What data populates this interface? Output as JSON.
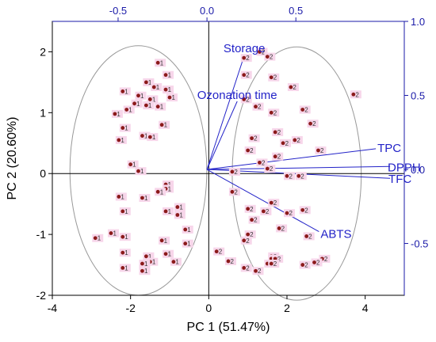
{
  "chart_data": {
    "type": "scatter",
    "subtype": "biplot",
    "xlabel": "PC 1 (51.47%)",
    "ylabel": "PC 2 (20.60%)",
    "xlim": [
      -4,
      5
    ],
    "ylim": [
      -2,
      2.5
    ],
    "xticks": [
      "-4",
      "-2",
      "0",
      "2",
      "4"
    ],
    "yticks": [
      "-2",
      "-1",
      "0",
      "1",
      "2"
    ],
    "loading_xlim": [
      -0.87,
      1.11
    ],
    "loading_ylim": [
      -0.85,
      1.0
    ],
    "loading_xticks": [
      "-0.5",
      "0.0",
      "0.5"
    ],
    "loading_yticks": [
      "-0.5",
      "0.0",
      "0.5",
      "1.0"
    ],
    "grid": false,
    "colors": {
      "point": "#8b1a1a",
      "point_bg": "#f7d6ea",
      "vector": "#2323c8",
      "ellipse": "#999999",
      "secondary_axis": "#1a1aa8"
    },
    "series": [
      {
        "label": "1",
        "points": [
          [
            -1.3,
            1.82
          ],
          [
            -1.1,
            1.62
          ],
          [
            -1.6,
            1.5
          ],
          [
            -1.4,
            1.42
          ],
          [
            -1.1,
            1.38
          ],
          [
            -2.2,
            1.35
          ],
          [
            -1.8,
            1.28
          ],
          [
            -1.5,
            1.22
          ],
          [
            -1.0,
            1.25
          ],
          [
            -1.9,
            1.15
          ],
          [
            -1.6,
            1.12
          ],
          [
            -1.3,
            1.1
          ],
          [
            -2.1,
            1.05
          ],
          [
            -1.2,
            0.8
          ],
          [
            -2.4,
            0.98
          ],
          [
            -2.2,
            0.75
          ],
          [
            -1.7,
            0.62
          ],
          [
            -2.3,
            0.55
          ],
          [
            -1.5,
            0.6
          ],
          [
            -2.0,
            0.15
          ],
          [
            -1.8,
            0.04
          ],
          [
            -2.3,
            -0.38
          ],
          [
            -1.1,
            -0.18
          ],
          [
            -1.1,
            -0.25
          ],
          [
            -1.3,
            -0.3
          ],
          [
            -1.7,
            -0.4
          ],
          [
            -0.8,
            -0.55
          ],
          [
            -2.2,
            -0.62
          ],
          [
            -1.1,
            -0.62
          ],
          [
            -0.8,
            -0.68
          ],
          [
            -2.5,
            -0.98
          ],
          [
            -0.6,
            -0.92
          ],
          [
            -2.2,
            -1.04
          ],
          [
            -2.9,
            -1.06
          ],
          [
            -1.2,
            -1.1
          ],
          [
            -0.6,
            -1.15
          ],
          [
            -2.2,
            -1.3
          ],
          [
            -1.1,
            -1.32
          ],
          [
            -1.6,
            -1.36
          ],
          [
            -1.5,
            -1.45
          ],
          [
            -1.7,
            -1.48
          ],
          [
            -0.9,
            -1.45
          ],
          [
            -2.2,
            -1.55
          ],
          [
            -1.7,
            -1.6
          ]
        ]
      },
      {
        "label": "2",
        "points": [
          [
            1.3,
            2.0
          ],
          [
            0.9,
            1.9
          ],
          [
            1.5,
            1.92
          ],
          [
            0.9,
            1.62
          ],
          [
            1.6,
            1.58
          ],
          [
            2.1,
            1.42
          ],
          [
            3.7,
            1.3
          ],
          [
            0.9,
            1.22
          ],
          [
            1.2,
            1.1
          ],
          [
            2.4,
            1.05
          ],
          [
            1.6,
            1.0
          ],
          [
            2.6,
            0.82
          ],
          [
            1.7,
            0.68
          ],
          [
            1.1,
            0.58
          ],
          [
            1.9,
            0.5
          ],
          [
            2.2,
            0.55
          ],
          [
            1.0,
            0.38
          ],
          [
            2.8,
            0.38
          ],
          [
            1.7,
            0.28
          ],
          [
            1.3,
            0.18
          ],
          [
            1.5,
            0.08
          ],
          [
            0.6,
            0.03
          ],
          [
            2.3,
            -0.04
          ],
          [
            2.0,
            -0.04
          ],
          [
            0.6,
            -0.3
          ],
          [
            1.6,
            -0.48
          ],
          [
            1.4,
            -0.62
          ],
          [
            2.4,
            -0.6
          ],
          [
            1.0,
            -0.58
          ],
          [
            2.0,
            -0.65
          ],
          [
            1.1,
            -0.76
          ],
          [
            1.8,
            -0.9
          ],
          [
            1.0,
            -1.0
          ],
          [
            2.5,
            -1.03
          ],
          [
            0.9,
            -1.1
          ],
          [
            0.2,
            -1.28
          ],
          [
            1.6,
            -1.36
          ],
          [
            1.6,
            -1.4
          ],
          [
            1.7,
            -1.4
          ],
          [
            2.9,
            -1.4
          ],
          [
            2.7,
            -1.46
          ],
          [
            0.5,
            -1.44
          ],
          [
            1.5,
            -1.48
          ],
          [
            1.6,
            -1.48
          ],
          [
            2.4,
            -1.5
          ],
          [
            0.9,
            -1.55
          ],
          [
            1.2,
            -1.6
          ]
        ]
      }
    ],
    "loadings": [
      {
        "label": "Storage",
        "x": 0.21,
        "y": 0.77
      },
      {
        "label": "Ozonation time",
        "x": 0.17,
        "y": 0.46
      },
      {
        "label": "TPC",
        "x": 0.95,
        "y": 0.14
      },
      {
        "label": "DPPH",
        "x": 1.03,
        "y": 0.02
      },
      {
        "label": "TFC",
        "x": 1.03,
        "y": -0.06
      },
      {
        "label": "ABTS",
        "x": 0.63,
        "y": -0.42
      }
    ],
    "ellipses": [
      {
        "group": "1",
        "cx": -1.8,
        "cy": 0.05,
        "rx": 1.75,
        "ry": 2.05
      },
      {
        "group": "2",
        "cx": 2.25,
        "cy": 0.0,
        "rx": 1.65,
        "ry": 2.08
      }
    ]
  }
}
